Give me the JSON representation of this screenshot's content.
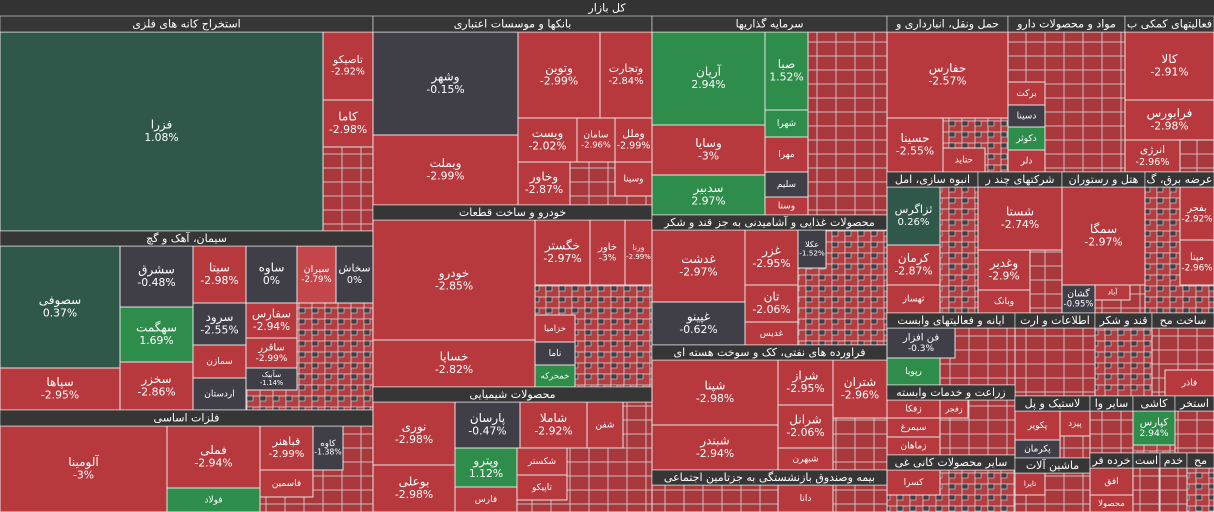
{
  "header": "کل بازار",
  "sectors": [
    {
      "title": "استخراج کانه های فلزی",
      "tiles": [
        {
          "name": "فزرا",
          "change": "1.08%"
        },
        {
          "name": "تاصیکو",
          "change": "-2.92%"
        },
        {
          "name": "کاما",
          "change": "-2.98%"
        }
      ]
    },
    {
      "title": "سیمان، آهک و گچ",
      "tiles": [
        {
          "name": "سصوفی",
          "change": "0.37%"
        },
        {
          "name": "سپاها",
          "change": "-2.95%"
        },
        {
          "name": "سشرق",
          "change": "-0.48%"
        },
        {
          "name": "سهگمت",
          "change": "1.69%"
        },
        {
          "name": "سخزر",
          "change": "-2.86%"
        },
        {
          "name": "سیتا",
          "change": "-2.98%"
        },
        {
          "name": "ساوه",
          "change": "0%"
        },
        {
          "name": "سیران",
          "change": "-2.79%"
        },
        {
          "name": "سخاش",
          "change": "0%"
        },
        {
          "name": "سرود",
          "change": "-2.55%"
        },
        {
          "name": "سفارس",
          "change": "-2.94%"
        },
        {
          "name": "ساقرر",
          "change": "-2.99%"
        },
        {
          "name": "سمازن"
        },
        {
          "name": "سآبیک",
          "change": "-1.14%"
        },
        {
          "name": "اردستان"
        }
      ]
    },
    {
      "title": "فلزات اساسی",
      "tiles": [
        {
          "name": "آلومینا",
          "change": "-3%"
        },
        {
          "name": "فملی",
          "change": "-2.94%"
        },
        {
          "name": "فولاد"
        },
        {
          "name": "فباهنر",
          "change": "-2.99%"
        },
        {
          "name": "کاوه",
          "change": "-1.38%"
        },
        {
          "name": "فاسمین"
        }
      ]
    },
    {
      "title": "بانکها و موسسات اعتباری",
      "tiles": [
        {
          "name": "وشهر",
          "change": "-0.15%"
        },
        {
          "name": "وبملت",
          "change": "-2.99%"
        },
        {
          "name": "وتوین",
          "change": "-2.99%"
        },
        {
          "name": "وتجارت",
          "change": "-2.84%"
        },
        {
          "name": "ویست",
          "change": "-2.02%"
        },
        {
          "name": "سامان",
          "change": "-2.96%"
        },
        {
          "name": "وملل",
          "change": "-2.99%"
        },
        {
          "name": "وخاور",
          "change": "-2.87%"
        },
        {
          "name": "وسینا"
        }
      ]
    },
    {
      "title": "خودرو و ساخت قطعات",
      "tiles": [
        {
          "name": "خودرو",
          "change": "-2.85%"
        },
        {
          "name": "خساپا",
          "change": "-2.82%"
        },
        {
          "name": "خگستر",
          "change": "-2.97%"
        },
        {
          "name": "خاور",
          "change": "-3%"
        },
        {
          "name": "ورنا",
          "change": "-2.99%"
        },
        {
          "name": "خزامیا"
        },
        {
          "name": "ناما"
        },
        {
          "name": "خمحرکه"
        }
      ]
    },
    {
      "title": "محصولات شیمیایی",
      "tiles": [
        {
          "name": "نوری",
          "change": "-2.98%"
        },
        {
          "name": "بوعلی",
          "change": "-2.98%"
        },
        {
          "name": "پارسان",
          "change": "-0.47%"
        },
        {
          "name": "شاملا",
          "change": "-2.92%"
        },
        {
          "name": "شفن"
        },
        {
          "name": "وپترو",
          "change": "1.12%"
        },
        {
          "name": "شکستر"
        },
        {
          "name": "تاپیکو"
        },
        {
          "name": "فارس"
        }
      ]
    },
    {
      "title": "سرمایه گذاریها",
      "tiles": [
        {
          "name": "آریان",
          "change": "2.94%"
        },
        {
          "name": "صبا",
          "change": "1.52%"
        },
        {
          "name": "وسایا",
          "change": "-3%"
        },
        {
          "name": "سدبیر",
          "change": "2.97%"
        },
        {
          "name": "شهرا"
        },
        {
          "name": "مهرا"
        },
        {
          "name": "سلیم"
        },
        {
          "name": "وسنا"
        }
      ]
    },
    {
      "title": "محصولات غذایی و آشامیدنی به جز قند و شکر",
      "tiles": [
        {
          "name": "غدشت",
          "change": "-2.97%"
        },
        {
          "name": "غپینو",
          "change": "-0.62%"
        },
        {
          "name": "غزر",
          "change": "-2.95%"
        },
        {
          "name": "عکلا",
          "change": "-1.52%"
        },
        {
          "name": "تان",
          "change": "-2.06%"
        },
        {
          "name": "غدیس"
        }
      ]
    },
    {
      "title": "فراورده های نفتی، کک و سوخت هسته ای",
      "tiles": [
        {
          "name": "شپنا",
          "change": "-2.98%"
        },
        {
          "name": "شبندر",
          "change": "-2.94%"
        },
        {
          "name": "شراز",
          "change": "-2.95%"
        },
        {
          "name": "شتران",
          "change": "-2.96%"
        },
        {
          "name": "شرانل",
          "change": "-2.06%"
        },
        {
          "name": "شبهرن"
        }
      ]
    },
    {
      "title": "بیمه وصندوق بازنشستگی به جزتامین اجتماعی",
      "tiles": [
        {
          "name": "دانا"
        }
      ]
    },
    {
      "title": "حمل ونقل، انبارداری و",
      "tiles": [
        {
          "name": "حفارس",
          "change": "-2.57%"
        },
        {
          "name": "حسینا",
          "change": "-2.55%"
        },
        {
          "name": "حتاید"
        }
      ]
    },
    {
      "title": "مواد و محصولات دارو",
      "tiles": [
        {
          "name": "برکت"
        },
        {
          "name": "دسینا"
        },
        {
          "name": "دکوثر"
        },
        {
          "name": "دلر"
        }
      ]
    },
    {
      "title": "فعالیتهای کمکی ب",
      "tiles": [
        {
          "name": "کالا",
          "change": "-2.91%"
        },
        {
          "name": "فرابورس",
          "change": "-2.98%"
        },
        {
          "name": "انرژی",
          "change": "-2.96%"
        }
      ]
    },
    {
      "title": "انبوه سازی، امل",
      "tiles": [
        {
          "name": "ثزاگرس",
          "change": "0.26%"
        },
        {
          "name": "کرمان",
          "change": "-2.87%"
        },
        {
          "name": "ثهساز"
        }
      ]
    },
    {
      "title": "شرکتهای چند ر",
      "tiles": [
        {
          "name": "شستا",
          "change": "-2.74%"
        },
        {
          "name": "وغدیر",
          "change": "-2.9%"
        },
        {
          "name": "وبانک"
        }
      ]
    },
    {
      "title": "هتل و رستوران",
      "tiles": [
        {
          "name": "سمگا",
          "change": "-2.97%"
        },
        {
          "name": "گشان",
          "change": "-0.95%"
        },
        {
          "name": "آباد"
        }
      ]
    },
    {
      "title": "عرضه برق، گ",
      "tiles": [
        {
          "name": "بفجر",
          "change": "-2.92%"
        },
        {
          "name": "مپنا",
          "change": "-2.96%"
        }
      ]
    },
    {
      "title": "ایانه و فعالیتهای وابست",
      "tiles": [
        {
          "name": "فن افزار",
          "change": "-0.3%"
        },
        {
          "name": "رپویا"
        }
      ]
    },
    {
      "title": "اطلاعات و ارت",
      "tiles": []
    },
    {
      "title": "قند و شکر",
      "tiles": []
    },
    {
      "title": "ساخت مح",
      "tiles": [
        {
          "name": "فاذر"
        }
      ]
    },
    {
      "title": "زراعت و خدمات وابسته",
      "tiles": [
        {
          "name": "زفکا"
        },
        {
          "name": "زفجر"
        },
        {
          "name": "سیمرغ"
        },
        {
          "name": "زماهان"
        }
      ]
    },
    {
      "title": "سایر محصولات کانی غی",
      "tiles": [
        {
          "name": "کسرا"
        }
      ]
    },
    {
      "title": "لاستیک و پل",
      "tiles": [
        {
          "name": "پکویر"
        },
        {
          "name": "پکرمان"
        },
        {
          "name": "پیزد"
        }
      ]
    },
    {
      "title": "سایر وا",
      "tiles": []
    },
    {
      "title": "کاشی",
      "tiles": [
        {
          "name": "کپارس",
          "change": "2.94%"
        }
      ]
    },
    {
      "title": "استخر",
      "tiles": []
    },
    {
      "title": "ماشین آلات",
      "tiles": [
        {
          "name": "تایرا"
        }
      ]
    },
    {
      "title": "خرده فر",
      "tiles": [
        {
          "name": "افق"
        },
        {
          "name": "محصولا"
        }
      ]
    },
    {
      "title": "است",
      "tiles": []
    },
    {
      "title": "خدم",
      "tiles": []
    },
    {
      "title": "مح",
      "tiles": []
    }
  ]
}
